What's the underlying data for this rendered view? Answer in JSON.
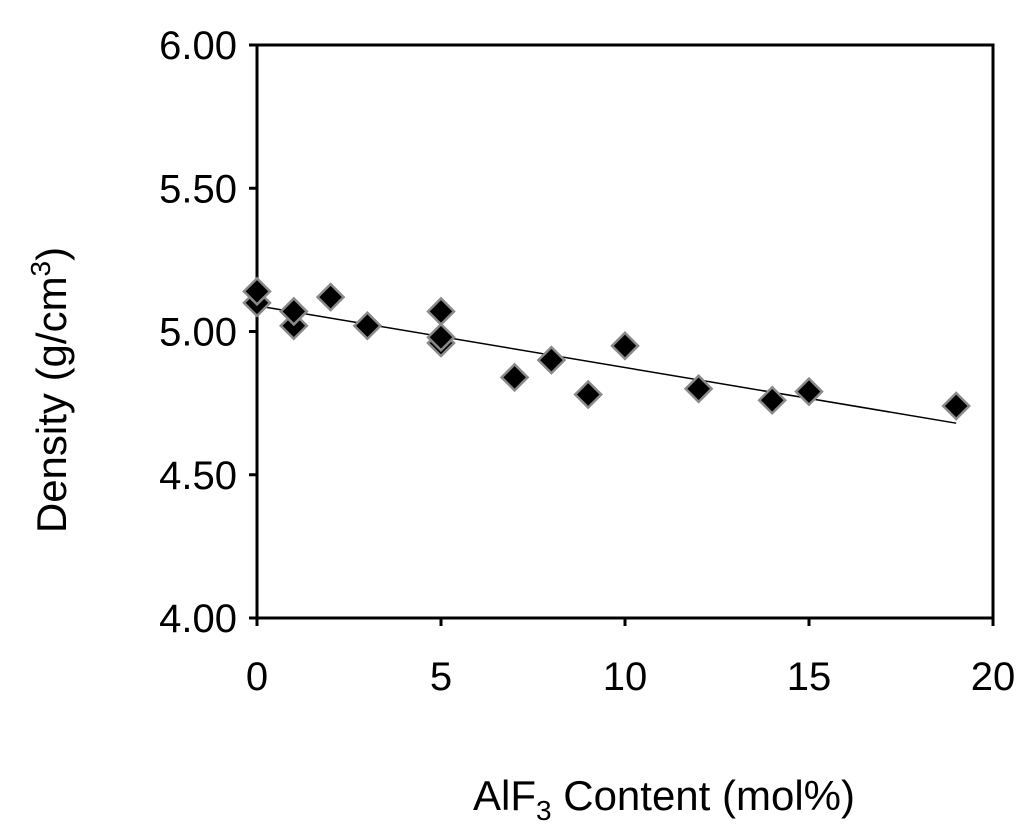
{
  "chart_data": {
    "type": "scatter",
    "title": "",
    "xlabel": {
      "main": "AlF",
      "subscript": "3",
      "rest": " Content (mol%)"
    },
    "ylabel": {
      "main": "Density (g/cm",
      "superscript": "3",
      "rest": ")"
    },
    "xlim": [
      0,
      20
    ],
    "ylim": [
      4.0,
      6.0
    ],
    "x_ticks": [
      "0",
      "5",
      "10",
      "15",
      "20"
    ],
    "y_ticks": [
      "4.00",
      "4.50",
      "5.00",
      "5.50",
      "6.00"
    ],
    "grid": false,
    "legend": "none",
    "marker": "diamond",
    "marker_color": "#000000",
    "points": [
      {
        "x": 0,
        "y": 5.1
      },
      {
        "x": 0,
        "y": 5.14
      },
      {
        "x": 1,
        "y": 5.02
      },
      {
        "x": 1,
        "y": 5.07
      },
      {
        "x": 2,
        "y": 5.12
      },
      {
        "x": 3,
        "y": 5.02
      },
      {
        "x": 5,
        "y": 4.96
      },
      {
        "x": 5,
        "y": 4.98
      },
      {
        "x": 5,
        "y": 5.07
      },
      {
        "x": 7,
        "y": 4.84
      },
      {
        "x": 8,
        "y": 4.9
      },
      {
        "x": 9,
        "y": 4.78
      },
      {
        "x": 10,
        "y": 4.95
      },
      {
        "x": 12,
        "y": 4.8
      },
      {
        "x": 14,
        "y": 4.76
      },
      {
        "x": 15,
        "y": 4.79
      },
      {
        "x": 19,
        "y": 4.74
      }
    ],
    "trendline": {
      "x": [
        0,
        19
      ],
      "y": [
        5.09,
        4.68
      ]
    }
  }
}
